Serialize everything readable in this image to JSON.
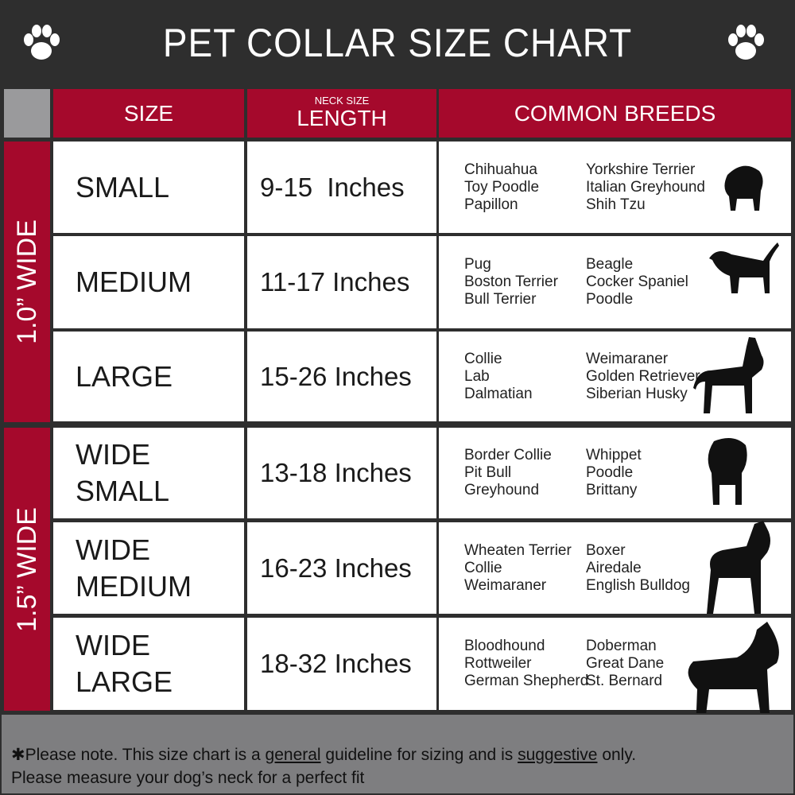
{
  "title": "PET COLLAR SIZE CHART",
  "icons": [
    "paw-icon",
    "paw-icon"
  ],
  "header": {
    "size": "SIZE",
    "length_small": "NECK SIZE",
    "length": "LENGTH",
    "breeds": "COMMON BREEDS"
  },
  "groups": [
    {
      "label": "1.0” WIDE"
    },
    {
      "label": "1.5” WIDE"
    }
  ],
  "rows": [
    {
      "size": [
        "SMALL"
      ],
      "length": "9-15  Inches",
      "breeds_a": [
        "Chihuahua",
        "Toy Poodle",
        "Papillon"
      ],
      "breeds_b": [
        "Yorkshire Terrier",
        "Italian Greyhound",
        "Shih Tzu"
      ]
    },
    {
      "size": [
        "MEDIUM"
      ],
      "length": "11-17 Inches",
      "breeds_a": [
        "Pug",
        "Boston Terrier",
        "Bull Terrier"
      ],
      "breeds_b": [
        "Beagle",
        "Cocker Spaniel",
        "Poodle"
      ]
    },
    {
      "size": [
        "LARGE"
      ],
      "length": "15-26 Inches",
      "breeds_a": [
        "Collie",
        "Lab",
        "Dalmatian"
      ],
      "breeds_b": [
        "Weimaraner",
        "Golden Retriever",
        "Siberian Husky"
      ]
    },
    {
      "size": [
        "WIDE",
        "SMALL"
      ],
      "length": "13-18 Inches",
      "breeds_a": [
        "Border Collie",
        "Pit Bull",
        "Greyhound"
      ],
      "breeds_b": [
        "Whippet",
        "Poodle",
        "Brittany"
      ]
    },
    {
      "size": [
        "WIDE",
        "MEDIUM"
      ],
      "length": "16-23 Inches",
      "breeds_a": [
        "Wheaten Terrier",
        "Collie",
        "Weimaraner"
      ],
      "breeds_b": [
        "Boxer",
        "Airedale",
        "English Bulldog"
      ]
    },
    {
      "size": [
        "WIDE",
        "LARGE"
      ],
      "length": "18-32 Inches",
      "breeds_a": [
        "Bloodhound",
        "Rottweiler",
        "German Shepherd"
      ],
      "breeds_b": [
        "Doberman",
        "Great Dane",
        "St. Bernard"
      ]
    }
  ],
  "footer": {
    "prefix": "✱Please note. This size chart is a ",
    "general": "general",
    "middle": " guideline for sizing and is ",
    "suggestive": "suggestive",
    "suffix": " only.",
    "line2": "Please measure your dog’s neck for a perfect fit"
  },
  "colors": {
    "accent": "#a5092c",
    "background": "#2e2e2e",
    "footer": "#7e7e80"
  }
}
